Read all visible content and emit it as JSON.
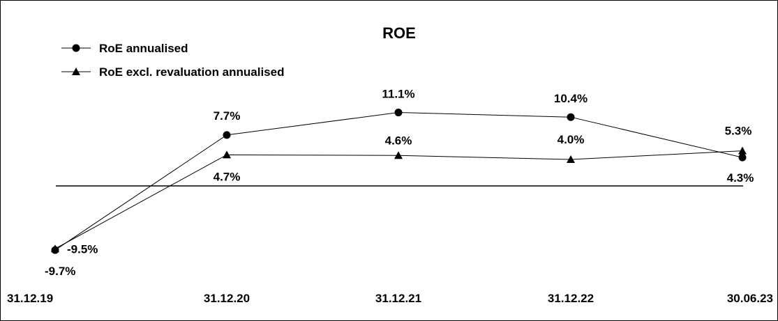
{
  "chart_data": {
    "type": "line",
    "title": "ROE",
    "categories": [
      "31.12.19",
      "31.12.20",
      "31.12.21",
      "31.12.22",
      "30.06.23"
    ],
    "ylim": [
      -12,
      14
    ],
    "grid": false,
    "legend_position": "top-left",
    "zero_line": true,
    "series": [
      {
        "name": "RoE annualised",
        "marker": "circle",
        "values": [
          -9.7,
          7.7,
          11.1,
          10.4,
          4.3
        ],
        "labels": [
          "-9.7%",
          "7.7%",
          "11.1%",
          "10.4%",
          "4.3%"
        ]
      },
      {
        "name": "RoE excl. revaluation annualised",
        "marker": "triangle",
        "values": [
          -9.5,
          4.7,
          4.6,
          4.0,
          5.3
        ],
        "labels": [
          "-9.5%",
          "4.7%",
          "4.6%",
          "4.0%",
          "5.3%"
        ]
      }
    ]
  }
}
